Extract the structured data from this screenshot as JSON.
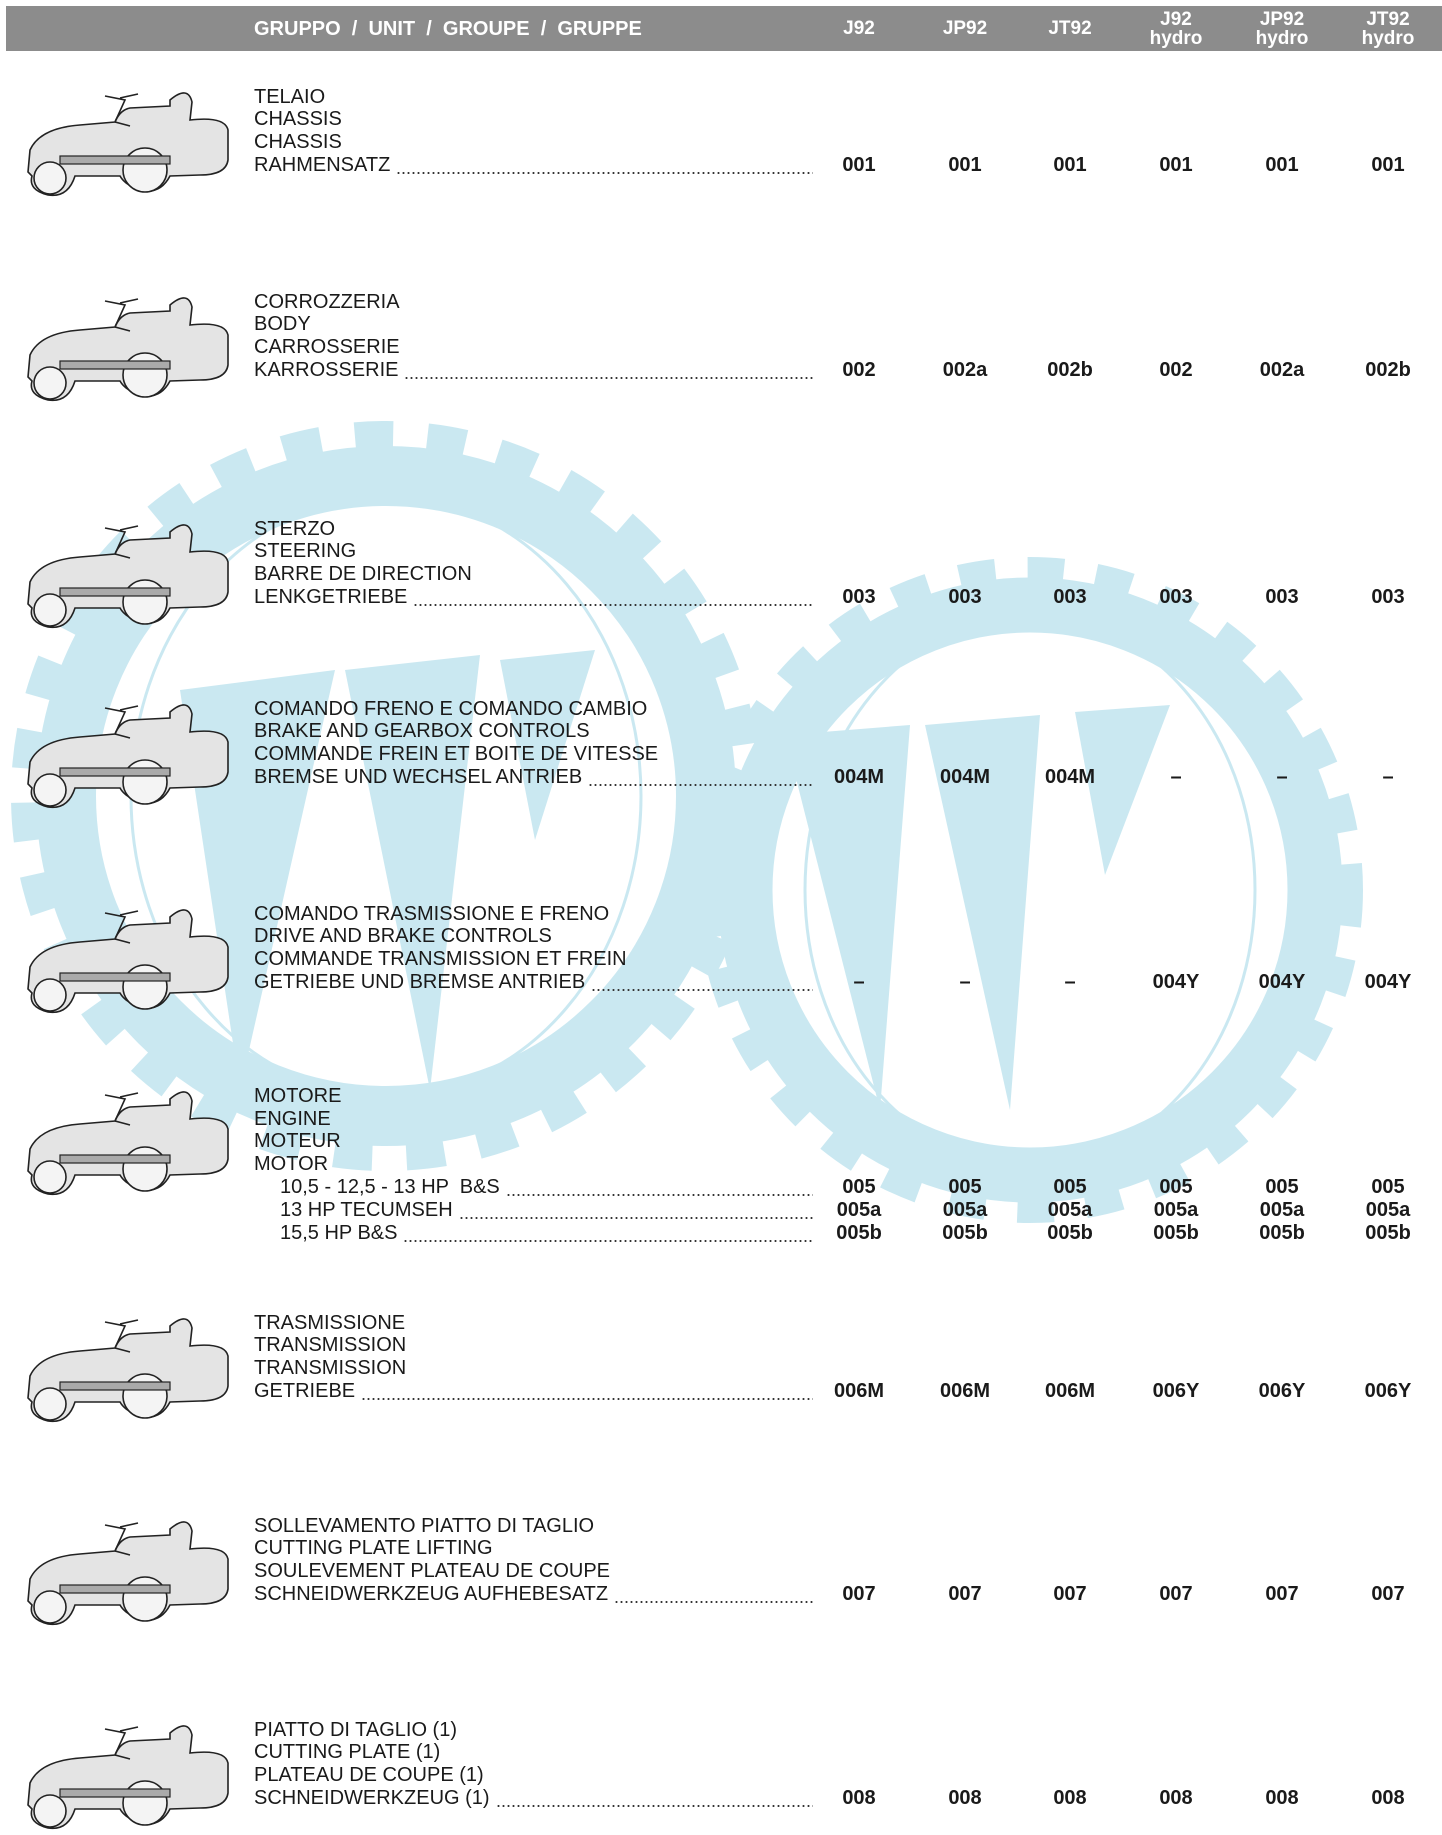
{
  "header": {
    "title": "GRUPPO  /  UNIT  /  GROUPE  /  GRUPPE",
    "columns": [
      {
        "model": "J92"
      },
      {
        "model": "JP92"
      },
      {
        "model": "JT92"
      },
      {
        "model": "J92",
        "variant": "hydro"
      },
      {
        "model": "JP92",
        "variant": "hydro"
      },
      {
        "model": "JT92",
        "variant": "hydro"
      }
    ]
  },
  "rows": [
    {
      "labels": [
        "TELAIO",
        "CHASSIS",
        "CHASSIS",
        "RAHMENSATZ"
      ],
      "codes": [
        "001",
        "001",
        "001",
        "001",
        "001",
        "001"
      ]
    },
    {
      "labels": [
        "CORROZZERIA",
        "BODY",
        "CARROSSERIE",
        "KARROSSERIE"
      ],
      "codes": [
        "002",
        "002a",
        "002b",
        "002",
        "002a",
        "002b"
      ]
    },
    {
      "labels": [
        "STERZO",
        "STEERING",
        "BARRE DE DIRECTION",
        "LENKGETRIEBE"
      ],
      "codes": [
        "003",
        "003",
        "003",
        "003",
        "003",
        "003"
      ]
    },
    {
      "labels": [
        "COMANDO FRENO E COMANDO CAMBIO",
        "BRAKE AND GEARBOX CONTROLS",
        "COMMANDE FREIN ET BOITE DE VITESSE",
        "BREMSE UND WECHSEL ANTRIEB"
      ],
      "codes": [
        "004M",
        "004M",
        "004M",
        "–",
        "–",
        "–"
      ]
    },
    {
      "labels": [
        "COMANDO TRASMISSIONE E FRENO",
        "DRIVE AND BRAKE CONTROLS",
        "COMMANDE TRANSMISSION ET FREIN",
        "GETRIEBE UND BREMSE ANTRIEB"
      ],
      "codes": [
        "–",
        "–",
        "–",
        "004Y",
        "004Y",
        "004Y"
      ]
    },
    {
      "labels": [
        "MOTORE",
        "ENGINE",
        "MOTEUR",
        "MOTOR"
      ],
      "subrows": [
        {
          "label": "10,5 - 12,5 - 13 HP  B&S",
          "codes": [
            "005",
            "005",
            "005",
            "005",
            "005",
            "005"
          ]
        },
        {
          "label": "13 HP TECUMSEH",
          "codes": [
            "005a",
            "005a",
            "005a",
            "005a",
            "005a",
            "005a"
          ]
        },
        {
          "label": "15,5 HP B&S",
          "codes": [
            "005b",
            "005b",
            "005b",
            "005b",
            "005b",
            "005b"
          ]
        }
      ]
    },
    {
      "labels": [
        "TRASMISSIONE",
        "TRANSMISSION",
        "TRANSMISSION",
        "GETRIEBE"
      ],
      "codes": [
        "006M",
        "006M",
        "006M",
        "006Y",
        "006Y",
        "006Y"
      ]
    },
    {
      "labels": [
        "SOLLEVAMENTO PIATTO DI TAGLIO",
        "CUTTING PLATE LIFTING",
        "SOULEVEMENT PLATEAU DE COUPE",
        "SCHNEIDWERKZEUG AUFHEBESATZ"
      ],
      "codes": [
        "007",
        "007",
        "007",
        "007",
        "007",
        "007"
      ]
    },
    {
      "labels": [
        "PIATTO DI TAGLIO (1)",
        "CUTTING PLATE (1)",
        "PLATEAU DE COUPE (1)",
        "SCHNEIDWERKZEUG (1)"
      ],
      "codes": [
        "008",
        "008",
        "008",
        "008",
        "008",
        "008"
      ]
    }
  ]
}
